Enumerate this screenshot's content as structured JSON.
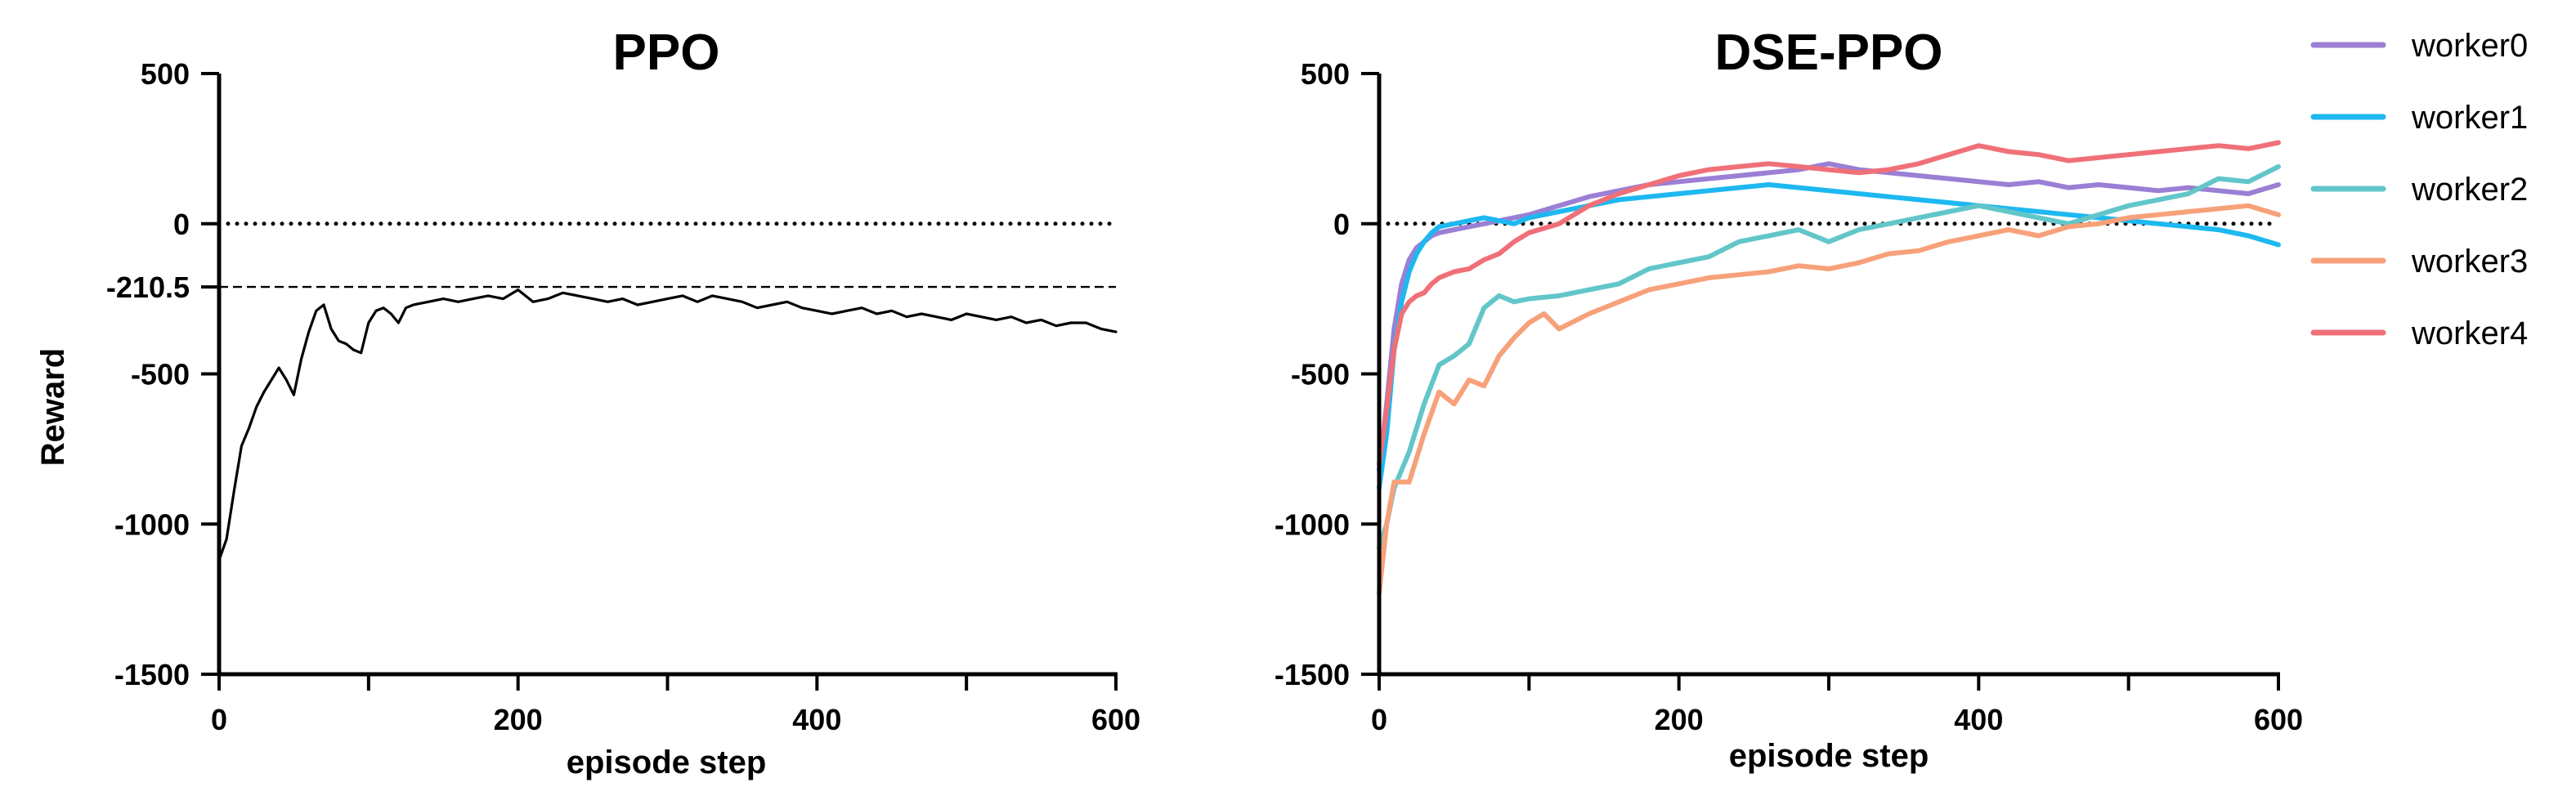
{
  "chart_data": [
    {
      "type": "line",
      "title": "PPO",
      "xlabel": "episode step",
      "ylabel": "Reward",
      "xlim": [
        0,
        600
      ],
      "ylim": [
        -1500,
        500
      ],
      "xticks": [
        "0",
        "200",
        "400",
        "600"
      ],
      "yticks": [
        "500",
        "0",
        "-210.5",
        "-500",
        "-1000",
        "-1500"
      ],
      "reference_lines": [
        {
          "y": 0,
          "style": "dotted"
        },
        {
          "y": -210.5,
          "style": "dashed"
        }
      ],
      "series": [
        {
          "color": "#000000",
          "x": [
            0,
            5,
            10,
            15,
            20,
            25,
            30,
            35,
            40,
            45,
            50,
            55,
            60,
            65,
            70,
            75,
            80,
            85,
            90,
            95,
            100,
            105,
            110,
            115,
            120,
            125,
            130,
            140,
            150,
            160,
            170,
            180,
            190,
            200,
            210,
            220,
            230,
            240,
            250,
            260,
            270,
            280,
            290,
            300,
            310,
            320,
            330,
            340,
            350,
            360,
            370,
            380,
            390,
            400,
            410,
            420,
            430,
            440,
            450,
            460,
            470,
            480,
            490,
            500,
            510,
            520,
            530,
            540,
            550,
            560,
            570,
            580,
            590,
            600
          ],
          "y": [
            -1120,
            -1050,
            -890,
            -740,
            -680,
            -610,
            -560,
            -520,
            -480,
            -520,
            -570,
            -450,
            -360,
            -290,
            -270,
            -350,
            -390,
            -400,
            -420,
            -430,
            -330,
            -290,
            -280,
            -300,
            -330,
            -280,
            -270,
            -260,
            -250,
            -260,
            -250,
            -240,
            -250,
            -220,
            -260,
            -250,
            -230,
            -240,
            -250,
            -260,
            -250,
            -270,
            -260,
            -250,
            -240,
            -260,
            -240,
            -250,
            -260,
            -280,
            -270,
            -260,
            -280,
            -290,
            -300,
            -290,
            -280,
            -300,
            -290,
            -310,
            -300,
            -310,
            -320,
            -300,
            -310,
            -320,
            -310,
            -330,
            -320,
            -340,
            -330,
            -330,
            -350,
            -360
          ]
        }
      ]
    },
    {
      "type": "line",
      "title": "DSE-PPO",
      "xlabel": "episode step",
      "ylabel": "",
      "xlim": [
        0,
        600
      ],
      "ylim": [
        -1500,
        500
      ],
      "xticks": [
        "0",
        "200",
        "400",
        "600"
      ],
      "yticks": [
        "500",
        "0",
        "-500",
        "-1000",
        "-1500"
      ],
      "reference_lines": [
        {
          "y": 0,
          "style": "dotted"
        }
      ],
      "legend_position": "right",
      "series": [
        {
          "name": "worker0",
          "color": "#9B7FD4",
          "x": [
            0,
            5,
            10,
            15,
            20,
            25,
            30,
            35,
            40,
            50,
            60,
            70,
            80,
            90,
            100,
            120,
            140,
            160,
            180,
            200,
            220,
            240,
            260,
            280,
            300,
            320,
            340,
            360,
            380,
            400,
            420,
            440,
            460,
            480,
            500,
            520,
            540,
            560,
            580,
            600
          ],
          "y": [
            -820,
            -600,
            -350,
            -200,
            -120,
            -80,
            -60,
            -40,
            -30,
            -20,
            -10,
            0,
            10,
            20,
            30,
            60,
            90,
            110,
            130,
            140,
            150,
            160,
            170,
            180,
            200,
            180,
            170,
            160,
            150,
            140,
            130,
            140,
            120,
            130,
            120,
            110,
            120,
            110,
            100,
            130
          ]
        },
        {
          "name": "worker1",
          "color": "#1EB8F0",
          "x": [
            0,
            5,
            10,
            15,
            20,
            25,
            30,
            35,
            40,
            50,
            60,
            70,
            80,
            90,
            100,
            120,
            140,
            160,
            180,
            200,
            220,
            240,
            260,
            280,
            300,
            320,
            340,
            360,
            380,
            400,
            420,
            440,
            460,
            480,
            500,
            520,
            540,
            560,
            580,
            600
          ],
          "y": [
            -880,
            -700,
            -420,
            -260,
            -160,
            -100,
            -60,
            -30,
            -10,
            0,
            10,
            20,
            10,
            0,
            20,
            40,
            60,
            80,
            90,
            100,
            110,
            120,
            130,
            120,
            110,
            100,
            90,
            80,
            70,
            60,
            50,
            40,
            30,
            20,
            10,
            0,
            -10,
            -20,
            -40,
            -70
          ]
        },
        {
          "name": "worker2",
          "color": "#62C6C9",
          "x": [
            0,
            5,
            10,
            20,
            30,
            40,
            50,
            60,
            70,
            80,
            90,
            100,
            120,
            140,
            160,
            180,
            200,
            220,
            240,
            260,
            280,
            300,
            320,
            340,
            360,
            380,
            400,
            420,
            440,
            460,
            480,
            500,
            520,
            540,
            560,
            580,
            600
          ],
          "y": [
            -1080,
            -1000,
            -880,
            -760,
            -600,
            -470,
            -440,
            -400,
            -280,
            -240,
            -260,
            -250,
            -240,
            -220,
            -200,
            -150,
            -130,
            -110,
            -60,
            -40,
            -20,
            -60,
            -20,
            0,
            20,
            40,
            60,
            40,
            20,
            0,
            30,
            60,
            80,
            100,
            150,
            140,
            190
          ]
        },
        {
          "name": "worker3",
          "color": "#F7A17A",
          "x": [
            0,
            5,
            10,
            20,
            30,
            40,
            50,
            60,
            70,
            80,
            90,
            100,
            110,
            120,
            140,
            160,
            180,
            200,
            220,
            240,
            260,
            280,
            300,
            320,
            340,
            360,
            380,
            400,
            420,
            440,
            460,
            480,
            500,
            520,
            540,
            560,
            580,
            600
          ],
          "y": [
            -1230,
            -1000,
            -860,
            -860,
            -700,
            -560,
            -600,
            -520,
            -540,
            -440,
            -380,
            -330,
            -300,
            -350,
            -300,
            -260,
            -220,
            -200,
            -180,
            -170,
            -160,
            -140,
            -150,
            -130,
            -100,
            -90,
            -60,
            -40,
            -20,
            -40,
            -10,
            0,
            20,
            30,
            40,
            50,
            60,
            30
          ]
        },
        {
          "name": "worker4",
          "color": "#F07078",
          "x": [
            0,
            5,
            10,
            15,
            20,
            25,
            30,
            35,
            40,
            50,
            60,
            70,
            80,
            90,
            100,
            120,
            140,
            160,
            180,
            200,
            220,
            240,
            260,
            280,
            300,
            320,
            340,
            360,
            380,
            400,
            420,
            440,
            460,
            480,
            500,
            520,
            540,
            560,
            580,
            600
          ],
          "y": [
            -800,
            -620,
            -420,
            -300,
            -260,
            -240,
            -230,
            -200,
            -180,
            -160,
            -150,
            -120,
            -100,
            -60,
            -30,
            0,
            60,
            100,
            130,
            160,
            180,
            190,
            200,
            190,
            180,
            170,
            180,
            200,
            230,
            260,
            240,
            230,
            210,
            220,
            230,
            240,
            250,
            260,
            250,
            270
          ]
        }
      ]
    }
  ]
}
